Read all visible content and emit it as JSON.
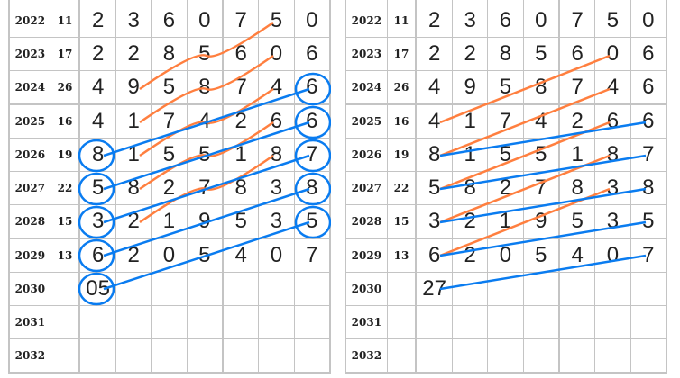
{
  "colors": {
    "orange": "#ff7f3f",
    "blue": "#0a7cf0",
    "grid": "#c4c4c4"
  },
  "panels": [
    {
      "rows": [
        {
          "year": "2022",
          "num": "11",
          "digits": [
            "2",
            "3",
            "6",
            "0",
            "7",
            "5",
            "0"
          ]
        },
        {
          "year": "2023",
          "num": "17",
          "digits": [
            "2",
            "2",
            "8",
            "5",
            "6",
            "0",
            "6"
          ]
        },
        {
          "year": "2024",
          "num": "26",
          "digits": [
            "4",
            "9",
            "5",
            "8",
            "7",
            "4",
            "6"
          ]
        },
        {
          "year": "2025",
          "num": "16",
          "digits": [
            "4",
            "1",
            "7",
            "4",
            "2",
            "6",
            "6"
          ]
        },
        {
          "year": "2026",
          "num": "19",
          "digits": [
            "8",
            "1",
            "5",
            "5",
            "1",
            "8",
            "7"
          ]
        },
        {
          "year": "2027",
          "num": "22",
          "digits": [
            "5",
            "8",
            "2",
            "7",
            "8",
            "3",
            "8"
          ]
        },
        {
          "year": "2028",
          "num": "15",
          "digits": [
            "3",
            "2",
            "1",
            "9",
            "5",
            "3",
            "5"
          ]
        },
        {
          "year": "2029",
          "num": "13",
          "digits": [
            "6",
            "2",
            "0",
            "5",
            "4",
            "0",
            "7"
          ]
        },
        {
          "year": "2030",
          "num": "",
          "digits": [
            "05",
            "",
            "",
            "",
            "",
            "",
            ""
          ]
        },
        {
          "year": "2031",
          "num": "",
          "digits": [
            "",
            "",
            "",
            "",
            "",
            "",
            ""
          ]
        },
        {
          "year": "2032",
          "num": "",
          "digits": [
            "",
            "",
            "",
            "",
            "",
            "",
            ""
          ]
        }
      ],
      "circled": [
        [
          2,
          6
        ],
        [
          3,
          6
        ],
        [
          4,
          6
        ],
        [
          5,
          6
        ],
        [
          6,
          6
        ],
        [
          4,
          0
        ],
        [
          5,
          0
        ],
        [
          6,
          0
        ],
        [
          7,
          0
        ],
        [
          8,
          0
        ]
      ],
      "connections": [
        {
          "from": [
            0,
            5
          ],
          "to": [
            2,
            1
          ],
          "color": "orange"
        },
        {
          "from": [
            1,
            5
          ],
          "to": [
            3,
            1
          ],
          "color": "orange"
        },
        {
          "from": [
            2,
            5
          ],
          "to": [
            4,
            1
          ],
          "color": "orange"
        },
        {
          "from": [
            3,
            5
          ],
          "to": [
            5,
            1
          ],
          "color": "orange"
        },
        {
          "from": [
            4,
            5
          ],
          "to": [
            6,
            1
          ],
          "color": "orange"
        },
        {
          "from": [
            2,
            6
          ],
          "to": [
            4,
            0
          ],
          "color": "blue"
        },
        {
          "from": [
            3,
            6
          ],
          "to": [
            5,
            0
          ],
          "color": "blue"
        },
        {
          "from": [
            4,
            6
          ],
          "to": [
            6,
            0
          ],
          "color": "blue"
        },
        {
          "from": [
            5,
            6
          ],
          "to": [
            7,
            0
          ],
          "color": "blue"
        },
        {
          "from": [
            6,
            6
          ],
          "to": [
            8,
            0
          ],
          "color": "blue"
        }
      ]
    },
    {
      "rows": [
        {
          "year": "2022",
          "num": "11",
          "digits": [
            "2",
            "3",
            "6",
            "0",
            "7",
            "5",
            "0"
          ]
        },
        {
          "year": "2023",
          "num": "17",
          "digits": [
            "2",
            "2",
            "8",
            "5",
            "6",
            "0",
            "6"
          ]
        },
        {
          "year": "2024",
          "num": "26",
          "digits": [
            "4",
            "9",
            "5",
            "8",
            "7",
            "4",
            "6"
          ]
        },
        {
          "year": "2025",
          "num": "16",
          "digits": [
            "4",
            "1",
            "7",
            "4",
            "2",
            "6",
            "6"
          ]
        },
        {
          "year": "2026",
          "num": "19",
          "digits": [
            "8",
            "1",
            "5",
            "5",
            "1",
            "8",
            "7"
          ]
        },
        {
          "year": "2027",
          "num": "22",
          "digits": [
            "5",
            "8",
            "2",
            "7",
            "8",
            "3",
            "8"
          ]
        },
        {
          "year": "2028",
          "num": "15",
          "digits": [
            "3",
            "2",
            "1",
            "9",
            "5",
            "3",
            "5"
          ]
        },
        {
          "year": "2029",
          "num": "13",
          "digits": [
            "6",
            "2",
            "0",
            "5",
            "4",
            "0",
            "7"
          ]
        },
        {
          "year": "2030",
          "num": "",
          "digits": [
            "27",
            "",
            "",
            "",
            "",
            "",
            ""
          ]
        },
        {
          "year": "2031",
          "num": "",
          "digits": [
            "",
            "",
            "",
            "",
            "",
            "",
            ""
          ]
        },
        {
          "year": "2032",
          "num": "",
          "digits": [
            "",
            "",
            "",
            "",
            "",
            "",
            ""
          ]
        }
      ],
      "circled": [],
      "connections": [
        {
          "from": [
            1,
            5
          ],
          "to": [
            3,
            0
          ],
          "color": "orange"
        },
        {
          "from": [
            2,
            5
          ],
          "to": [
            4,
            0
          ],
          "color": "orange"
        },
        {
          "from": [
            3,
            5
          ],
          "to": [
            5,
            0
          ],
          "color": "orange"
        },
        {
          "from": [
            4,
            5
          ],
          "to": [
            6,
            0
          ],
          "color": "orange"
        },
        {
          "from": [
            5,
            5
          ],
          "to": [
            7,
            0
          ],
          "color": "orange"
        },
        {
          "from": [
            3,
            6
          ],
          "to": [
            4,
            0
          ],
          "color": "blue"
        },
        {
          "from": [
            4,
            6
          ],
          "to": [
            5,
            0
          ],
          "color": "blue"
        },
        {
          "from": [
            5,
            6
          ],
          "to": [
            6,
            0
          ],
          "color": "blue"
        },
        {
          "from": [
            6,
            6
          ],
          "to": [
            7,
            0
          ],
          "color": "blue"
        },
        {
          "from": [
            7,
            6
          ],
          "to": [
            8,
            0
          ],
          "color": "blue"
        }
      ]
    }
  ]
}
